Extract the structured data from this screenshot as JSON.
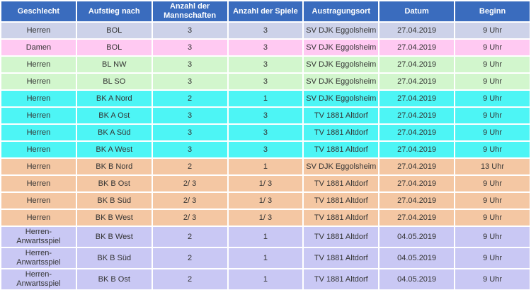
{
  "colors": {
    "header_bg": "#3a6cbe",
    "header_text": "#ffffff",
    "body_text": "#333333",
    "gap": "#ffffff",
    "row_bol_herren": "#cdd2e9",
    "row_bol_damen": "#ffc9f2",
    "row_bl": "#d2f6cd",
    "row_bk_a": "#4df5f5",
    "row_bk_b": "#f4c7a3",
    "row_anwartsspiel": "#c9c8f4"
  },
  "chart_data": {
    "type": "table",
    "title": "",
    "columns": [
      "Geschlecht",
      "Aufstieg nach",
      "Anzahl der\nMannschaften",
      "Anzahl der Spiele",
      "Austragungsort",
      "Datum",
      "Beginn"
    ],
    "rows": [
      {
        "bg": "#cdd2e9",
        "cells": [
          "Herren",
          "BOL",
          "3",
          "3",
          "SV DJK Eggolsheim",
          "27.04.2019",
          "9 Uhr"
        ]
      },
      {
        "bg": "#ffc9f2",
        "cells": [
          "Damen",
          "BOL",
          "3",
          "3",
          "SV DJK Eggolsheim",
          "27.04.2019",
          "9 Uhr"
        ]
      },
      {
        "bg": "#d2f6cd",
        "cells": [
          "Herren",
          "BL NW",
          "3",
          "3",
          "SV DJK Eggolsheim",
          "27.04.2019",
          "9 Uhr"
        ]
      },
      {
        "bg": "#d2f6cd",
        "cells": [
          "Herren",
          "BL SO",
          "3",
          "3",
          "SV DJK Eggolsheim",
          "27.04.2019",
          "9 Uhr"
        ]
      },
      {
        "bg": "#4df5f5",
        "cells": [
          "Herren",
          "BK A Nord",
          "2",
          "1",
          "SV DJK Eggolsheim",
          "27.04.2019",
          "9 Uhr"
        ]
      },
      {
        "bg": "#4df5f5",
        "cells": [
          "Herren",
          "BK A Ost",
          "3",
          "3",
          "TV 1881 Altdorf",
          "27.04.2019",
          "9 Uhr"
        ]
      },
      {
        "bg": "#4df5f5",
        "cells": [
          "Herren",
          "BK A Süd",
          "3",
          "3",
          "TV 1881 Altdorf",
          "27.04.2019",
          "9 Uhr"
        ]
      },
      {
        "bg": "#4df5f5",
        "cells": [
          "Herren",
          "BK A West",
          "3",
          "3",
          "TV 1881 Altdorf",
          "27.04.2019",
          "9 Uhr"
        ]
      },
      {
        "bg": "#f4c7a3",
        "cells": [
          "Herren",
          "BK B Nord",
          "2",
          "1",
          "SV DJK Eggolsheim",
          "27.04.2019",
          "13 Uhr"
        ]
      },
      {
        "bg": "#f4c7a3",
        "cells": [
          "Herren",
          "BK B Ost",
          "2/ 3",
          "1/ 3",
          "TV 1881 Altdorf",
          "27.04.2019",
          "9 Uhr"
        ]
      },
      {
        "bg": "#f4c7a3",
        "cells": [
          "Herren",
          "BK B Süd",
          "2/ 3",
          "1/ 3",
          "TV 1881 Altdorf",
          "27.04.2019",
          "9 Uhr"
        ]
      },
      {
        "bg": "#f4c7a3",
        "cells": [
          "Herren",
          "BK B West",
          "2/ 3",
          "1/ 3",
          "TV 1881 Altdorf",
          "27.04.2019",
          "9 Uhr"
        ]
      },
      {
        "bg": "#c9c8f4",
        "cells": [
          "Herren-\nAnwartsspiel",
          "BK B West",
          "2",
          "1",
          "TV 1881 Altdorf",
          "04.05.2019",
          "9 Uhr"
        ]
      },
      {
        "bg": "#c9c8f4",
        "cells": [
          "Herren-\nAnwartsspiel",
          "BK B Süd",
          "2",
          "1",
          "TV 1881 Altdorf",
          "04.05.2019",
          "9 Uhr"
        ]
      },
      {
        "bg": "#c9c8f4",
        "cells": [
          "Herren-\nAnwartsspiel",
          "BK B Ost",
          "2",
          "1",
          "TV 1881 Altdorf",
          "04.05.2019",
          "9 Uhr"
        ]
      }
    ]
  }
}
